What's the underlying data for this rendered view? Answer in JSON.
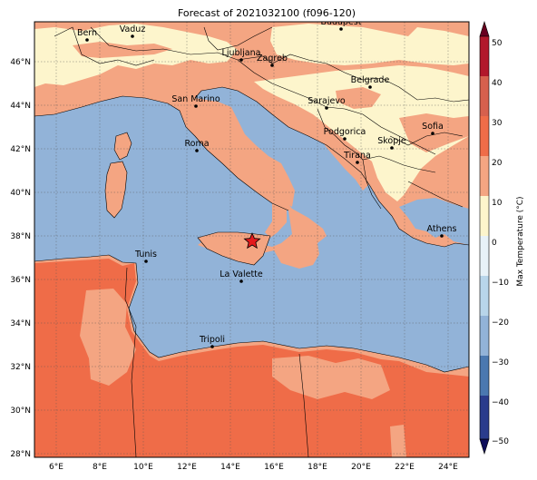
{
  "title": "Forecast of 2021032100 (f096-120)",
  "colorbar": {
    "label": "Max Temperature (°C)",
    "ticks": [
      "50",
      "40",
      "30",
      "20",
      "10",
      "0",
      "−10",
      "−20",
      "−30",
      "−40",
      "−50"
    ],
    "bands": [
      "#67001f",
      "#b2182b",
      "#d6604d",
      "#f4a582",
      "#fddbc7",
      "#fff7d0",
      "#d1e5f0",
      "#92c5de",
      "#4393c3",
      "#2166ac",
      "#253494",
      "#1a1a7a"
    ]
  },
  "axes": {
    "lon_ticks": [
      "6°E",
      "8°E",
      "10°E",
      "12°E",
      "14°E",
      "16°E",
      "18°E",
      "20°E",
      "22°E",
      "24°E"
    ],
    "lat_ticks": [
      "46°N",
      "44°N",
      "42°N",
      "40°N",
      "38°N",
      "36°N",
      "34°N",
      "32°N",
      "30°N",
      "28°N"
    ]
  },
  "cities": [
    {
      "name": "Bern"
    },
    {
      "name": "Vaduz"
    },
    {
      "name": "Budapest"
    },
    {
      "name": "Ljubljana"
    },
    {
      "name": "Zagreb"
    },
    {
      "name": "Belgrade"
    },
    {
      "name": "San Marino"
    },
    {
      "name": "Sarajevo"
    },
    {
      "name": "Sofia"
    },
    {
      "name": "Roma"
    },
    {
      "name": "Podgorica"
    },
    {
      "name": "Skopje"
    },
    {
      "name": "Tirana"
    },
    {
      "name": "Athens"
    },
    {
      "name": "Tunis"
    },
    {
      "name": "La Valette"
    },
    {
      "name": "Tripoli"
    }
  ],
  "marker": {
    "type": "star",
    "color": "#e41a1c"
  },
  "colors": {
    "sea": "#92b3d8",
    "land_warm": "#f4a582",
    "land_hot": "#ef6c48",
    "land_mild": "#fdf5cc"
  }
}
